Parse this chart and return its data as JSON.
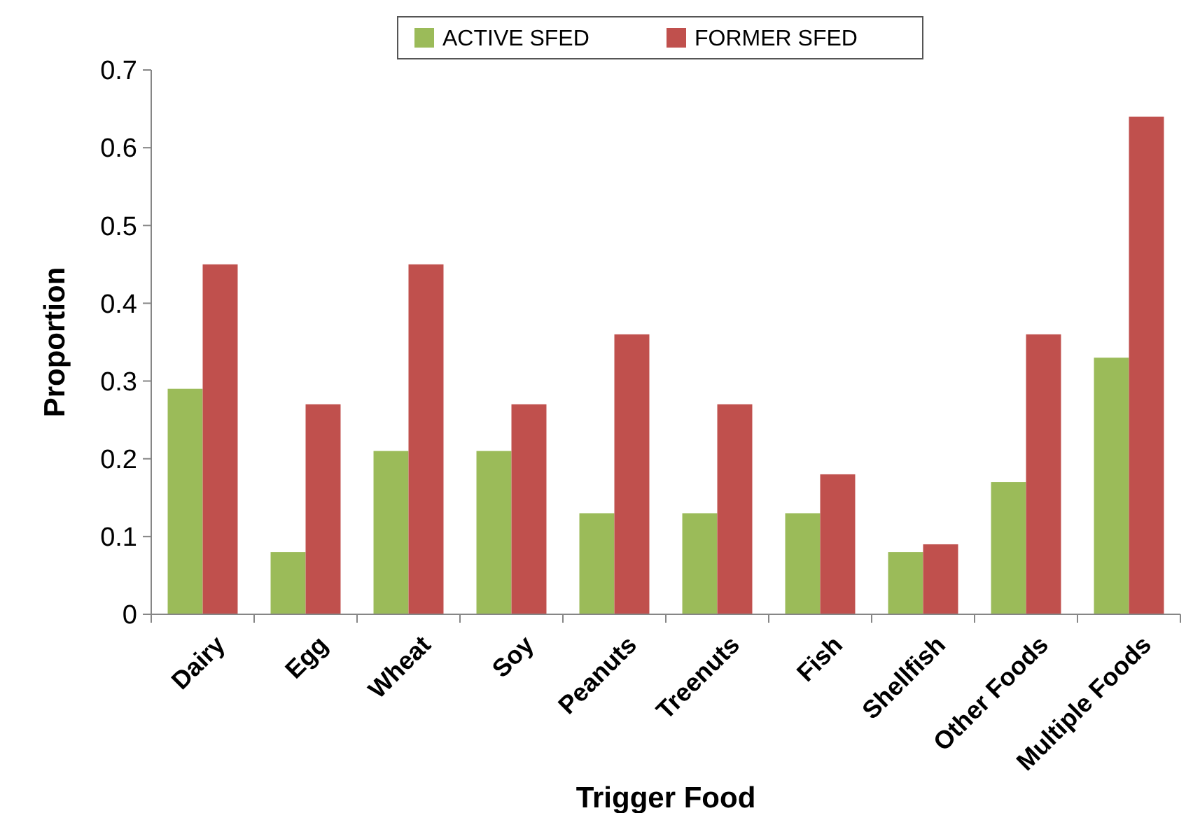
{
  "chart_data": {
    "type": "bar",
    "xlabel": "Trigger Food",
    "ylabel": "Proportion",
    "categories": [
      "Dairy",
      "Egg",
      "Wheat",
      "Soy",
      "Peanuts",
      "Treenuts",
      "Fish",
      "Shellfish",
      "Other Foods",
      "Multiple Foods"
    ],
    "series": [
      {
        "name": "ACTIVE SFED",
        "color": "#9bbb59",
        "values": [
          0.29,
          0.08,
          0.21,
          0.21,
          0.13,
          0.13,
          0.13,
          0.08,
          0.17,
          0.33
        ]
      },
      {
        "name": "FORMER SFED",
        "color": "#c0504d",
        "values": [
          0.45,
          0.27,
          0.45,
          0.27,
          0.36,
          0.27,
          0.18,
          0.09,
          0.36,
          0.64
        ]
      }
    ],
    "ylim": [
      0,
      0.7
    ],
    "yticks": [
      0,
      0.1,
      0.2,
      0.3,
      0.4,
      0.5,
      0.6,
      0.7
    ],
    "grid": false,
    "legend": "top"
  }
}
